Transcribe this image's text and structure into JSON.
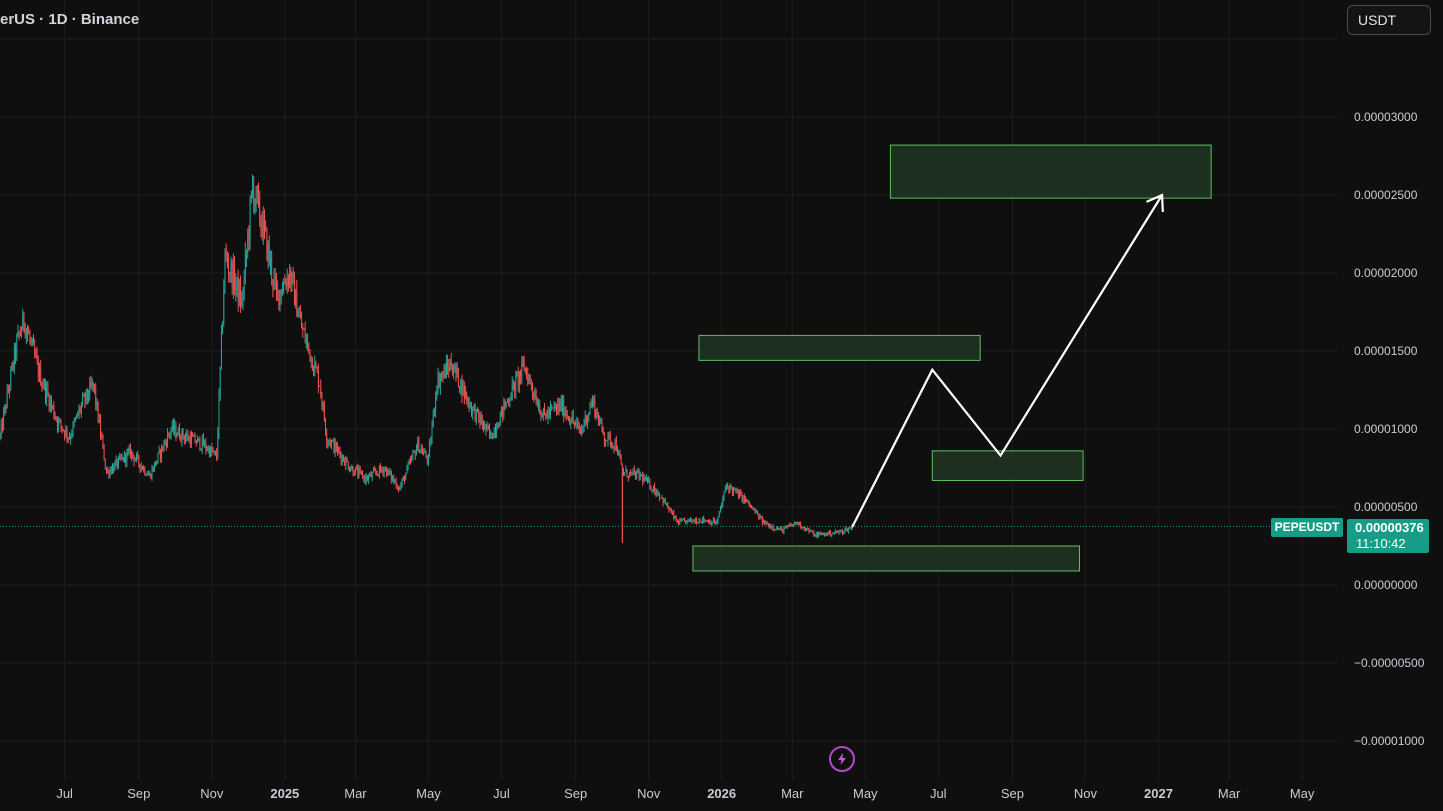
{
  "header": {
    "symbol_title": "erUS · 1D · Binance",
    "currency_button": "USDT"
  },
  "price_marker": {
    "symbol": "PEPEUSDT",
    "price": "0.00000376",
    "countdown": "11:10:42",
    "color": "#179c87"
  },
  "action_icon": "lightning-bolt-icon",
  "colors": {
    "background": "#0f0f0f",
    "up_candle": "#26a69a",
    "down_candle": "#ef5350",
    "zone_fill": "#1f3320",
    "zone_border": "#5fbf5f",
    "projection_line": "#ffffff"
  },
  "chart_data": {
    "type": "candlestick",
    "interval": "1D",
    "y_axis": {
      "ylim": [
        -1.1e-05,
        3.55e-05
      ],
      "ticks": [
        {
          "value": 3e-05,
          "label": "0.00003000"
        },
        {
          "value": 2.5e-05,
          "label": "0.00002500"
        },
        {
          "value": 2e-05,
          "label": "0.00002000"
        },
        {
          "value": 1.5e-05,
          "label": "0.00001500"
        },
        {
          "value": 1e-05,
          "label": "0.00001000"
        },
        {
          "value": 5e-06,
          "label": "0.00000500"
        },
        {
          "value": 0.0,
          "label": "0.00000000"
        },
        {
          "value": -5e-06,
          "label": "−0.00000500"
        },
        {
          "value": -1e-05,
          "label": "−0.00001000"
        }
      ]
    },
    "x_axis": {
      "range": [
        "2024-05-08",
        "2027-05-31"
      ],
      "ticks": [
        {
          "date": "2024-07-01",
          "label": "Jul",
          "bold": false
        },
        {
          "date": "2024-09-01",
          "label": "Sep",
          "bold": false
        },
        {
          "date": "2024-11-01",
          "label": "Nov",
          "bold": false
        },
        {
          "date": "2025-01-01",
          "label": "2025",
          "bold": true
        },
        {
          "date": "2025-03-01",
          "label": "Mar",
          "bold": false
        },
        {
          "date": "2025-05-01",
          "label": "May",
          "bold": false
        },
        {
          "date": "2025-07-01",
          "label": "Jul",
          "bold": false
        },
        {
          "date": "2025-09-01",
          "label": "Sep",
          "bold": false
        },
        {
          "date": "2025-11-01",
          "label": "Nov",
          "bold": false
        },
        {
          "date": "2026-01-01",
          "label": "2026",
          "bold": true
        },
        {
          "date": "2026-03-01",
          "label": "Mar",
          "bold": false
        },
        {
          "date": "2026-05-01",
          "label": "May",
          "bold": false
        },
        {
          "date": "2026-07-01",
          "label": "Jul",
          "bold": false
        },
        {
          "date": "2026-09-01",
          "label": "Sep",
          "bold": false
        },
        {
          "date": "2026-11-01",
          "label": "Nov",
          "bold": false
        },
        {
          "date": "2027-01-01",
          "label": "2027",
          "bold": true
        },
        {
          "date": "2027-03-01",
          "label": "Mar",
          "bold": false
        },
        {
          "date": "2027-05-01",
          "label": "May",
          "bold": false
        }
      ]
    },
    "close_path": [
      [
        "2024-05-08",
        9.5e-06
      ],
      [
        "2024-05-22",
        1.55e-05
      ],
      [
        "2024-05-28",
        1.7e-05
      ],
      [
        "2024-06-10",
        1.35e-05
      ],
      [
        "2024-06-25",
        1.05e-05
      ],
      [
        "2024-07-05",
        9.5e-06
      ],
      [
        "2024-07-15",
        1.15e-05
      ],
      [
        "2024-07-25",
        1.28e-05
      ],
      [
        "2024-08-05",
        7.2e-06
      ],
      [
        "2024-08-25",
        8.5e-06
      ],
      [
        "2024-09-10",
        7e-06
      ],
      [
        "2024-09-28",
        1e-05
      ],
      [
        "2024-10-10",
        9.5e-06
      ],
      [
        "2024-10-25",
        9e-06
      ],
      [
        "2024-11-05",
        8.2e-06
      ],
      [
        "2024-11-12",
        2.1e-05
      ],
      [
        "2024-11-20",
        1.95e-05
      ],
      [
        "2024-11-26",
        1.8e-05
      ],
      [
        "2024-12-05",
        2.55e-05
      ],
      [
        "2024-12-15",
        2.25e-05
      ],
      [
        "2024-12-25",
        1.85e-05
      ],
      [
        "2025-01-05",
        2e-05
      ],
      [
        "2025-01-15",
        1.65e-05
      ],
      [
        "2025-01-30",
        1.3e-05
      ],
      [
        "2025-02-05",
        9.5e-06
      ],
      [
        "2025-02-25",
        7.5e-06
      ],
      [
        "2025-03-10",
        6.8e-06
      ],
      [
        "2025-03-25",
        7.5e-06
      ],
      [
        "2025-04-07",
        6.2e-06
      ],
      [
        "2025-04-22",
        9e-06
      ],
      [
        "2025-05-01",
        8e-06
      ],
      [
        "2025-05-08",
        1.3e-05
      ],
      [
        "2025-05-20",
        1.42e-05
      ],
      [
        "2025-06-05",
        1.15e-05
      ],
      [
        "2025-06-22",
        9.5e-06
      ],
      [
        "2025-07-10",
        1.25e-05
      ],
      [
        "2025-07-20",
        1.4e-05
      ],
      [
        "2025-08-05",
        1.08e-05
      ],
      [
        "2025-08-20",
        1.15e-05
      ],
      [
        "2025-09-05",
        9.8e-06
      ],
      [
        "2025-09-15",
        1.18e-05
      ],
      [
        "2025-09-25",
        9.5e-06
      ],
      [
        "2025-10-05",
        9e-06
      ],
      [
        "2025-10-10",
        7.2e-06
      ],
      [
        "2025-10-25",
        7e-06
      ],
      [
        "2025-11-10",
        5.8e-06
      ],
      [
        "2025-11-25",
        4e-06
      ],
      [
        "2025-12-15",
        4.2e-06
      ],
      [
        "2025-12-28",
        4e-06
      ],
      [
        "2026-01-05",
        6.4e-06
      ],
      [
        "2026-01-20",
        5.5e-06
      ],
      [
        "2026-02-05",
        4e-06
      ],
      [
        "2026-02-20",
        3.5e-06
      ],
      [
        "2026-03-05",
        4e-06
      ],
      [
        "2026-03-20",
        3.2e-06
      ],
      [
        "2026-04-10",
        3.4e-06
      ],
      [
        "2026-04-20",
        3.7e-06
      ]
    ],
    "crash_wick": {
      "date": "2025-10-10",
      "low": 2.7e-06
    },
    "last_price": 3.76e-06,
    "zones": [
      {
        "x": [
          "2026-05-22",
          "2027-02-14"
        ],
        "y": [
          2.48e-05,
          2.82e-05
        ]
      },
      {
        "x": [
          "2025-12-13",
          "2026-08-05"
        ],
        "y": [
          1.44e-05,
          1.6e-05
        ]
      },
      {
        "x": [
          "2026-06-26",
          "2026-10-30"
        ],
        "y": [
          6.7e-06,
          8.6e-06
        ]
      },
      {
        "x": [
          "2025-12-08",
          "2026-10-27"
        ],
        "y": [
          9e-07,
          2.5e-06
        ]
      }
    ],
    "projection": [
      [
        "2026-04-20",
        3.7e-06
      ],
      [
        "2026-06-26",
        1.38e-05
      ],
      [
        "2026-08-22",
        8.3e-06
      ],
      [
        "2027-01-04",
        2.5e-05
      ]
    ]
  }
}
